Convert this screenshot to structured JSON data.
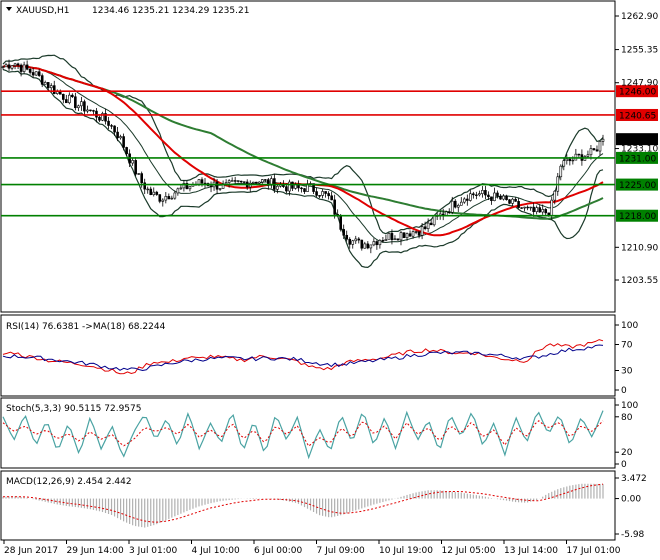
{
  "window": {
    "title": "XAUUSD,H1",
    "ohlc": "1234.46 1235.21 1234.29 1235.21"
  },
  "colors": {
    "candles": "#000000",
    "resistance": "#e00000",
    "support": "#008000",
    "ma_red": "#e00000",
    "ma_green": "#2e7d32",
    "bollinger": "#1b3a2a",
    "rsi": "#e00000",
    "rsi_ma": "#00008b",
    "stoch_main": "#4aa3a3",
    "stoch_signal": "#e00000",
    "macd_hist": "#b0b0b0",
    "macd_signal": "#e00000",
    "current_price_bg": "#000000"
  },
  "chart_data": [
    {
      "type": "candlestick",
      "symbol": "XAUUSD",
      "timeframe": "H1",
      "ylim": [
        1203.5,
        1263.5
      ],
      "y_ticks": [
        "1262.90",
        "1255.35",
        "1247.90",
        "1240.65",
        "1233.10",
        "1225.00",
        "1218.00",
        "1210.90",
        "1203.55"
      ],
      "x_ticks": [
        "28 Jun 2017",
        "29 Jun 14:00",
        "3 Jul 01:00",
        "4 Jul 10:00",
        "6 Jul 00:00",
        "7 Jul 09:00",
        "10 Jul 19:00",
        "12 Jul 05:00",
        "13 Jul 14:00",
        "17 Jul 01:00"
      ],
      "close_path": [
        1251.5,
        1252.5,
        1251,
        1250,
        1248,
        1246,
        1244.5,
        1243,
        1242,
        1240.5,
        1239,
        1236,
        1231,
        1226,
        1223,
        1222,
        1223,
        1224,
        1225,
        1225.5,
        1225,
        1224.5,
        1225,
        1225.5,
        1226,
        1225.5,
        1225,
        1224.5,
        1224,
        1224.5,
        1223.5,
        1222,
        1216,
        1212.5,
        1211.5,
        1212,
        1213,
        1213.5,
        1214,
        1214.5,
        1215,
        1217,
        1219,
        1221,
        1222.5,
        1223,
        1222.5,
        1222,
        1221,
        1220,
        1219,
        1218.5,
        1219,
        1229.5,
        1230.5,
        1231.5,
        1232,
        1235.21
      ],
      "levels": [
        {
          "value": "1246.00",
          "kind": "resistance"
        },
        {
          "value": "1240.65",
          "kind": "resistance"
        },
        {
          "value": "1231.00",
          "kind": "support"
        },
        {
          "value": "1225.00",
          "kind": "support"
        },
        {
          "value": "1218.00",
          "kind": "support"
        }
      ],
      "current_price": "1235.21",
      "indicators": [
        "Moving average (red)",
        "Moving average (green)",
        "Bollinger Bands"
      ]
    },
    {
      "type": "line",
      "title": "RSI(14) 76.6381 ->MA(18) 68.2244",
      "ylim": [
        0,
        100
      ],
      "y_ticks": [
        "100",
        "70",
        "30",
        "0"
      ],
      "rsi_path": [
        55,
        58,
        52,
        50,
        46,
        44,
        42,
        40,
        38,
        33,
        30,
        24,
        28,
        38,
        44,
        42,
        46,
        50,
        48,
        52,
        50,
        48,
        46,
        50,
        52,
        50,
        47,
        44,
        36,
        34,
        32,
        40,
        44,
        46,
        48,
        50,
        54,
        58,
        60,
        62,
        60,
        58,
        56,
        58,
        54,
        50,
        48,
        46,
        45,
        60,
        70,
        68,
        66,
        69,
        72,
        76.6
      ],
      "rsi_ma_path": [
        52,
        52,
        51,
        50,
        48,
        46,
        44,
        42,
        40,
        37,
        34,
        32,
        31,
        33,
        36,
        40,
        43,
        45,
        47,
        48,
        49,
        49,
        48,
        48,
        49,
        49,
        48,
        47,
        44,
        41,
        39,
        39,
        41,
        43,
        45,
        47,
        49,
        52,
        54,
        56,
        57,
        57,
        57,
        57,
        56,
        54,
        52,
        50,
        49,
        51,
        55,
        59,
        62,
        64,
        66,
        68.2
      ]
    },
    {
      "type": "line",
      "title": "Stoch(5,3,3) 90.5115 72.9575",
      "ylim": [
        0,
        100
      ],
      "y_ticks": [
        "100",
        "80",
        "20",
        "0"
      ],
      "k_path": [
        80,
        40,
        85,
        30,
        75,
        20,
        70,
        15,
        80,
        25,
        65,
        10,
        55,
        85,
        40,
        78,
        30,
        88,
        25,
        70,
        35,
        90,
        20,
        75,
        15,
        85,
        40,
        80,
        10,
        60,
        20,
        85,
        35,
        92,
        30,
        80,
        25,
        88,
        40,
        75,
        20,
        85,
        45,
        90,
        30,
        70,
        15,
        80,
        35,
        92,
        50,
        85,
        30,
        80,
        45,
        90.5
      ],
      "d_path": [
        70,
        55,
        65,
        50,
        58,
        42,
        52,
        38,
        55,
        42,
        50,
        30,
        42,
        62,
        55,
        62,
        50,
        68,
        45,
        58,
        45,
        70,
        42,
        58,
        35,
        65,
        50,
        65,
        30,
        45,
        35,
        62,
        45,
        75,
        50,
        65,
        42,
        70,
        50,
        62,
        38,
        65,
        52,
        72,
        45,
        58,
        32,
        62,
        45,
        75,
        60,
        72,
        45,
        65,
        55,
        73
      ]
    },
    {
      "type": "bar",
      "title": "MACD(12,26,9) 2.454 2.442",
      "ylim": [
        -5.98,
        3.472
      ],
      "y_ticks": [
        "3.472",
        "0.00",
        "-5.98"
      ],
      "hist_path": [
        0.3,
        0.4,
        0.2,
        -0.2,
        -0.6,
        -1.0,
        -1.3,
        -1.5,
        -1.8,
        -2.2,
        -2.8,
        -3.8,
        -4.6,
        -4.9,
        -4.4,
        -3.6,
        -2.8,
        -2.0,
        -1.3,
        -0.8,
        -0.4,
        -0.2,
        0.0,
        0.1,
        0.0,
        -0.1,
        -0.4,
        -0.8,
        -1.8,
        -2.8,
        -3.2,
        -2.8,
        -2.2,
        -1.6,
        -1.0,
        -0.5,
        0.0,
        0.6,
        1.1,
        1.4,
        1.4,
        1.2,
        1.0,
        0.7,
        0.4,
        0.0,
        -0.3,
        -0.6,
        -0.7,
        -0.2,
        0.9,
        1.7,
        2.2,
        2.5,
        2.5,
        2.45
      ],
      "signal_path": [
        0.3,
        0.3,
        0.3,
        0.1,
        -0.2,
        -0.5,
        -0.8,
        -1.0,
        -1.3,
        -1.6,
        -2.0,
        -2.6,
        -3.3,
        -3.8,
        -4.0,
        -3.8,
        -3.4,
        -2.8,
        -2.2,
        -1.6,
        -1.2,
        -0.8,
        -0.5,
        -0.3,
        -0.1,
        -0.1,
        -0.2,
        -0.4,
        -0.9,
        -1.6,
        -2.2,
        -2.5,
        -2.4,
        -2.1,
        -1.7,
        -1.2,
        -0.7,
        -0.2,
        0.3,
        0.8,
        1.1,
        1.2,
        1.2,
        1.0,
        0.8,
        0.5,
        0.2,
        -0.1,
        -0.3,
        -0.4,
        0.0,
        0.6,
        1.2,
        1.8,
        2.2,
        2.44
      ]
    }
  ]
}
